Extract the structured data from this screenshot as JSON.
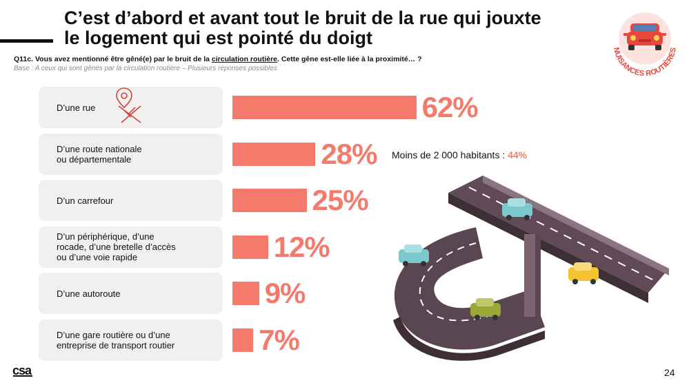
{
  "title": {
    "line1": "C’est d’abord et avant tout le bruit de la rue qui jouxte",
    "line2": "le logement qui est pointé du doigt"
  },
  "question": {
    "prefix": "Q11c. Vous avez mentionné être gêné(e) par le bruit de la ",
    "underlined": "circulation routière",
    "suffix": ". Cette gêne est-elle liée à la proximité… ?"
  },
  "base": "Base : A ceux qui sont gênés par la circulation routière – Plusieurs réponses possibles",
  "badge": {
    "label": "NUISANCES ROUTIÈRES"
  },
  "colors": {
    "accent": "#f47b6c",
    "row_bg": "#f1f0ef",
    "text": "#111111"
  },
  "chart_data": {
    "type": "bar",
    "orientation": "horizontal",
    "categories": [
      [
        "D’une rue"
      ],
      [
        "D’une route nationale",
        "ou départementale"
      ],
      [
        "D’un carrefour"
      ],
      [
        "D’un périphérique, d’une",
        "rocade, d’une bretelle d’accès",
        "ou d’une voie rapide"
      ],
      [
        "D’une autoroute"
      ],
      [
        "D’une gare routière ou d’une",
        "entreprise de transport routier"
      ]
    ],
    "values": [
      62,
      28,
      25,
      12,
      9,
      7
    ],
    "value_labels": [
      "62%",
      "28%",
      "25%",
      "12%",
      "9%",
      "7%"
    ],
    "xlim": [
      0,
      100
    ],
    "unit": "%",
    "annotation": {
      "category_index": 1,
      "text": "Moins de 2 000 habitants : ",
      "value": "44%"
    }
  },
  "footer": {
    "logo": "csa",
    "page": "24"
  }
}
